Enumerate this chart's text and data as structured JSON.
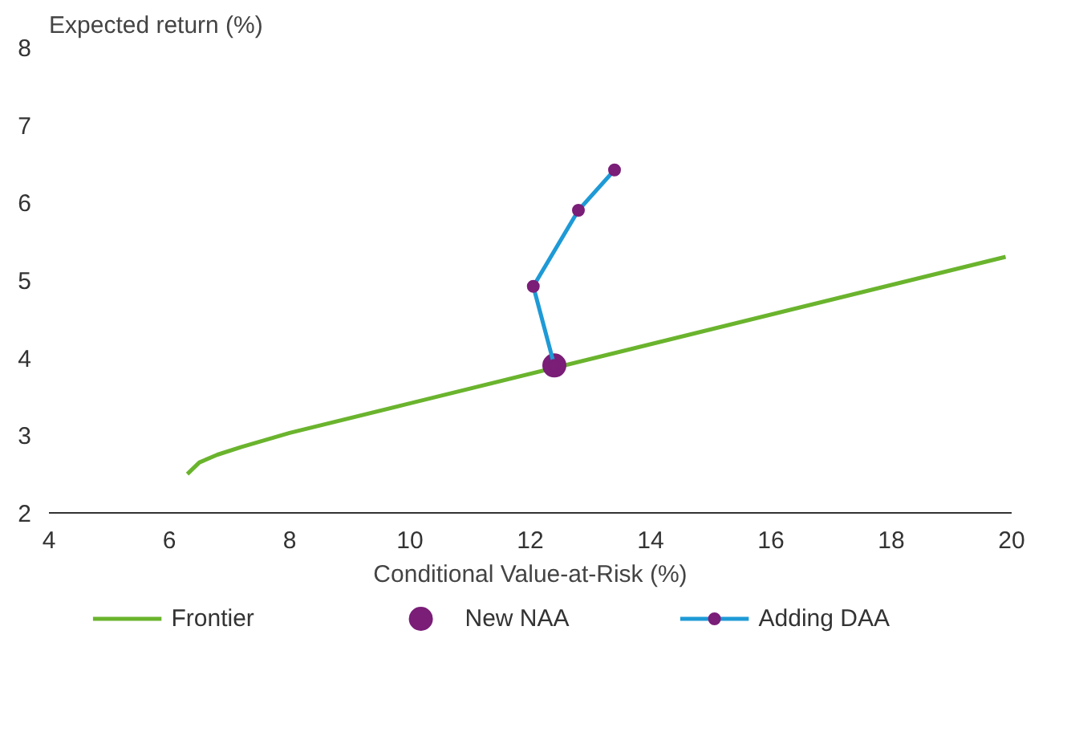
{
  "chart_data": {
    "type": "line",
    "xlabel": "Conditional Value-at-Risk (%)",
    "ylabel": "Expected return (%)",
    "xlim": [
      4,
      20
    ],
    "xticks": [
      4,
      6,
      8,
      10,
      12,
      14,
      16,
      18,
      20
    ],
    "ylim": [
      2,
      8
    ],
    "yticks": [
      2,
      3,
      4,
      5,
      6,
      7,
      8
    ],
    "grid": false,
    "legend": "bottom",
    "series": [
      {
        "name": "Frontier",
        "marker": "none",
        "color": "#6ab42d",
        "x": [
          6.3,
          6.5,
          6.8,
          7.2,
          8,
          19.9
        ],
        "values": [
          2.5,
          2.65,
          2.75,
          2.85,
          3.03,
          5.3
        ]
      },
      {
        "name": "New NAA",
        "type": "scatter",
        "marker": "circle",
        "color": "#7a1e78",
        "x": [
          12.4
        ],
        "values": [
          3.9
        ]
      },
      {
        "name": "Adding DAA",
        "type": "line",
        "marker": "circle",
        "color": "#1e9ad6",
        "colors": [
          "#7a1e78",
          "#7a1e78",
          "#7a1e78",
          "#7a1e78"
        ],
        "x": [
          12.4,
          12.05,
          12.8,
          13.4
        ],
        "values": [
          3.9,
          4.92,
          5.9,
          6.42
        ]
      }
    ]
  }
}
